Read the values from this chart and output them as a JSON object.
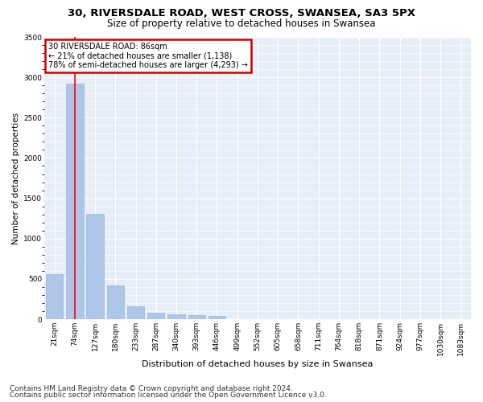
{
  "title1": "30, RIVERSDALE ROAD, WEST CROSS, SWANSEA, SA3 5PX",
  "title2": "Size of property relative to detached houses in Swansea",
  "xlabel": "Distribution of detached houses by size in Swansea",
  "ylabel": "Number of detached properties",
  "footnote1": "Contains HM Land Registry data © Crown copyright and database right 2024.",
  "footnote2": "Contains public sector information licensed under the Open Government Licence v3.0.",
  "annotation_line1": "30 RIVERSDALE ROAD: 86sqm",
  "annotation_line2": "← 21% of detached houses are smaller (1,138)",
  "annotation_line3": "78% of semi-detached houses are larger (4,293) →",
  "bin_labels": [
    "21sqm",
    "74sqm",
    "127sqm",
    "180sqm",
    "233sqm",
    "287sqm",
    "340sqm",
    "393sqm",
    "446sqm",
    "499sqm",
    "552sqm",
    "605sqm",
    "658sqm",
    "711sqm",
    "764sqm",
    "818sqm",
    "871sqm",
    "924sqm",
    "977sqm",
    "1030sqm",
    "1083sqm"
  ],
  "bar_values": [
    560,
    2920,
    1310,
    415,
    155,
    85,
    60,
    55,
    45,
    0,
    0,
    0,
    0,
    0,
    0,
    0,
    0,
    0,
    0,
    0,
    0
  ],
  "bar_color": "#aec6e8",
  "bar_edge_color": "#8aadd4",
  "red_line_x": 1,
  "ylim": [
    0,
    3500
  ],
  "yticks": [
    0,
    500,
    1000,
    1500,
    2000,
    2500,
    3000,
    3500
  ],
  "background_color": "#e8eef8",
  "annotation_box_edgecolor": "#cc0000",
  "title1_fontsize": 9.5,
  "title2_fontsize": 8.5,
  "xlabel_fontsize": 8,
  "ylabel_fontsize": 7.5,
  "tick_fontsize": 6.5,
  "annotation_fontsize": 7,
  "footnote_fontsize": 6.5
}
